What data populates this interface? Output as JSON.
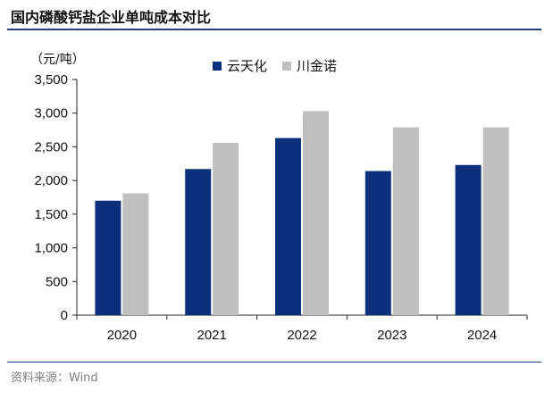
{
  "title": "国内磷酸钙盐企业单吨成本对比",
  "unit": "（元/吨）",
  "source": "资料来源：Wind",
  "colors": {
    "rule": "#1f3f7f",
    "series1": "#0b2f7a",
    "series2": "#bfbfbf"
  },
  "chart_data": {
    "type": "bar",
    "title": "国内磷酸钙盐企业单吨成本对比",
    "ylabel": "（元/吨）",
    "xlabel": "",
    "categories": [
      "2020",
      "2021",
      "2022",
      "2023",
      "2024"
    ],
    "series": [
      {
        "name": "云天化",
        "values": [
          1700,
          2170,
          2630,
          2140,
          2230
        ],
        "color": "#0b2f7a"
      },
      {
        "name": "川金诺",
        "values": [
          1810,
          2560,
          3030,
          2790,
          2790
        ],
        "color": "#bfbfbf"
      }
    ],
    "ylim": [
      0,
      3500
    ],
    "yticks": [
      0,
      500,
      1000,
      1500,
      2000,
      2500,
      3000,
      3500
    ],
    "ytick_labels": [
      "0",
      "500",
      "1,000",
      "1,500",
      "2,000",
      "2,500",
      "3,000",
      "3,500"
    ],
    "legend_position": "top",
    "grid": false
  }
}
